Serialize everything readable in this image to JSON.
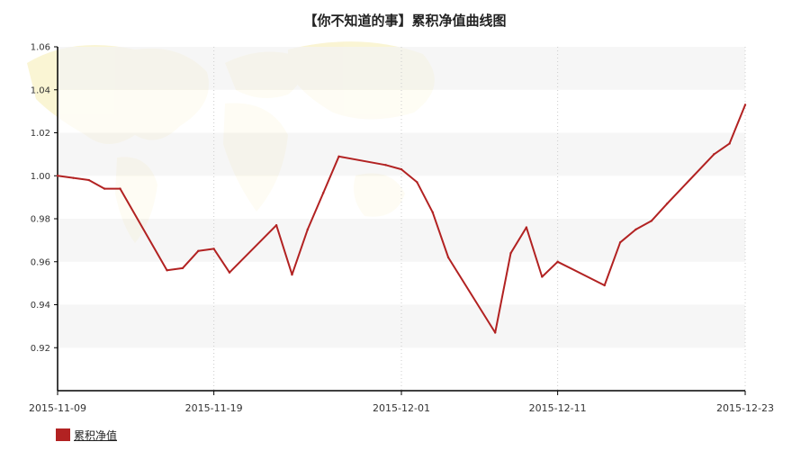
{
  "chart_data": {
    "type": "line",
    "title": "【你不知道的事】累积净值曲线图",
    "xlabel": "",
    "ylabel": "",
    "ylim": [
      0.9,
      1.06
    ],
    "y_ticks": [
      "0.92",
      "0.94",
      "0.96",
      "0.98",
      "1.00",
      "1.02",
      "1.04",
      "1.06"
    ],
    "x_ticks": [
      "2015-11-09",
      "2015-11-19",
      "2015-12-01",
      "2015-12-11",
      "2015-12-23"
    ],
    "x": [
      "2015-11-09",
      "2015-11-10",
      "2015-11-11",
      "2015-11-12",
      "2015-11-13",
      "2015-11-16",
      "2015-11-17",
      "2015-11-18",
      "2015-11-19",
      "2015-11-20",
      "2015-11-23",
      "2015-11-24",
      "2015-11-25",
      "2015-11-26",
      "2015-11-27",
      "2015-11-30",
      "2015-12-01",
      "2015-12-02",
      "2015-12-03",
      "2015-12-04",
      "2015-12-07",
      "2015-12-08",
      "2015-12-09",
      "2015-12-10",
      "2015-12-11",
      "2015-12-14",
      "2015-12-15",
      "2015-12-16",
      "2015-12-17",
      "2015-12-18",
      "2015-12-21",
      "2015-12-22",
      "2015-12-23"
    ],
    "series": [
      {
        "name": "累积净值",
        "color": "#b22222",
        "values": [
          1.0,
          0.999,
          0.998,
          0.994,
          0.994,
          0.956,
          0.957,
          0.965,
          0.966,
          0.955,
          0.977,
          0.954,
          0.975,
          0.992,
          1.009,
          1.005,
          1.003,
          0.997,
          0.983,
          0.962,
          0.927,
          0.964,
          0.976,
          0.953,
          0.96,
          0.949,
          0.969,
          0.975,
          0.979,
          0.987,
          1.01,
          1.015,
          1.033
        ]
      }
    ],
    "grid": true,
    "legend_position": "bottom-left"
  }
}
